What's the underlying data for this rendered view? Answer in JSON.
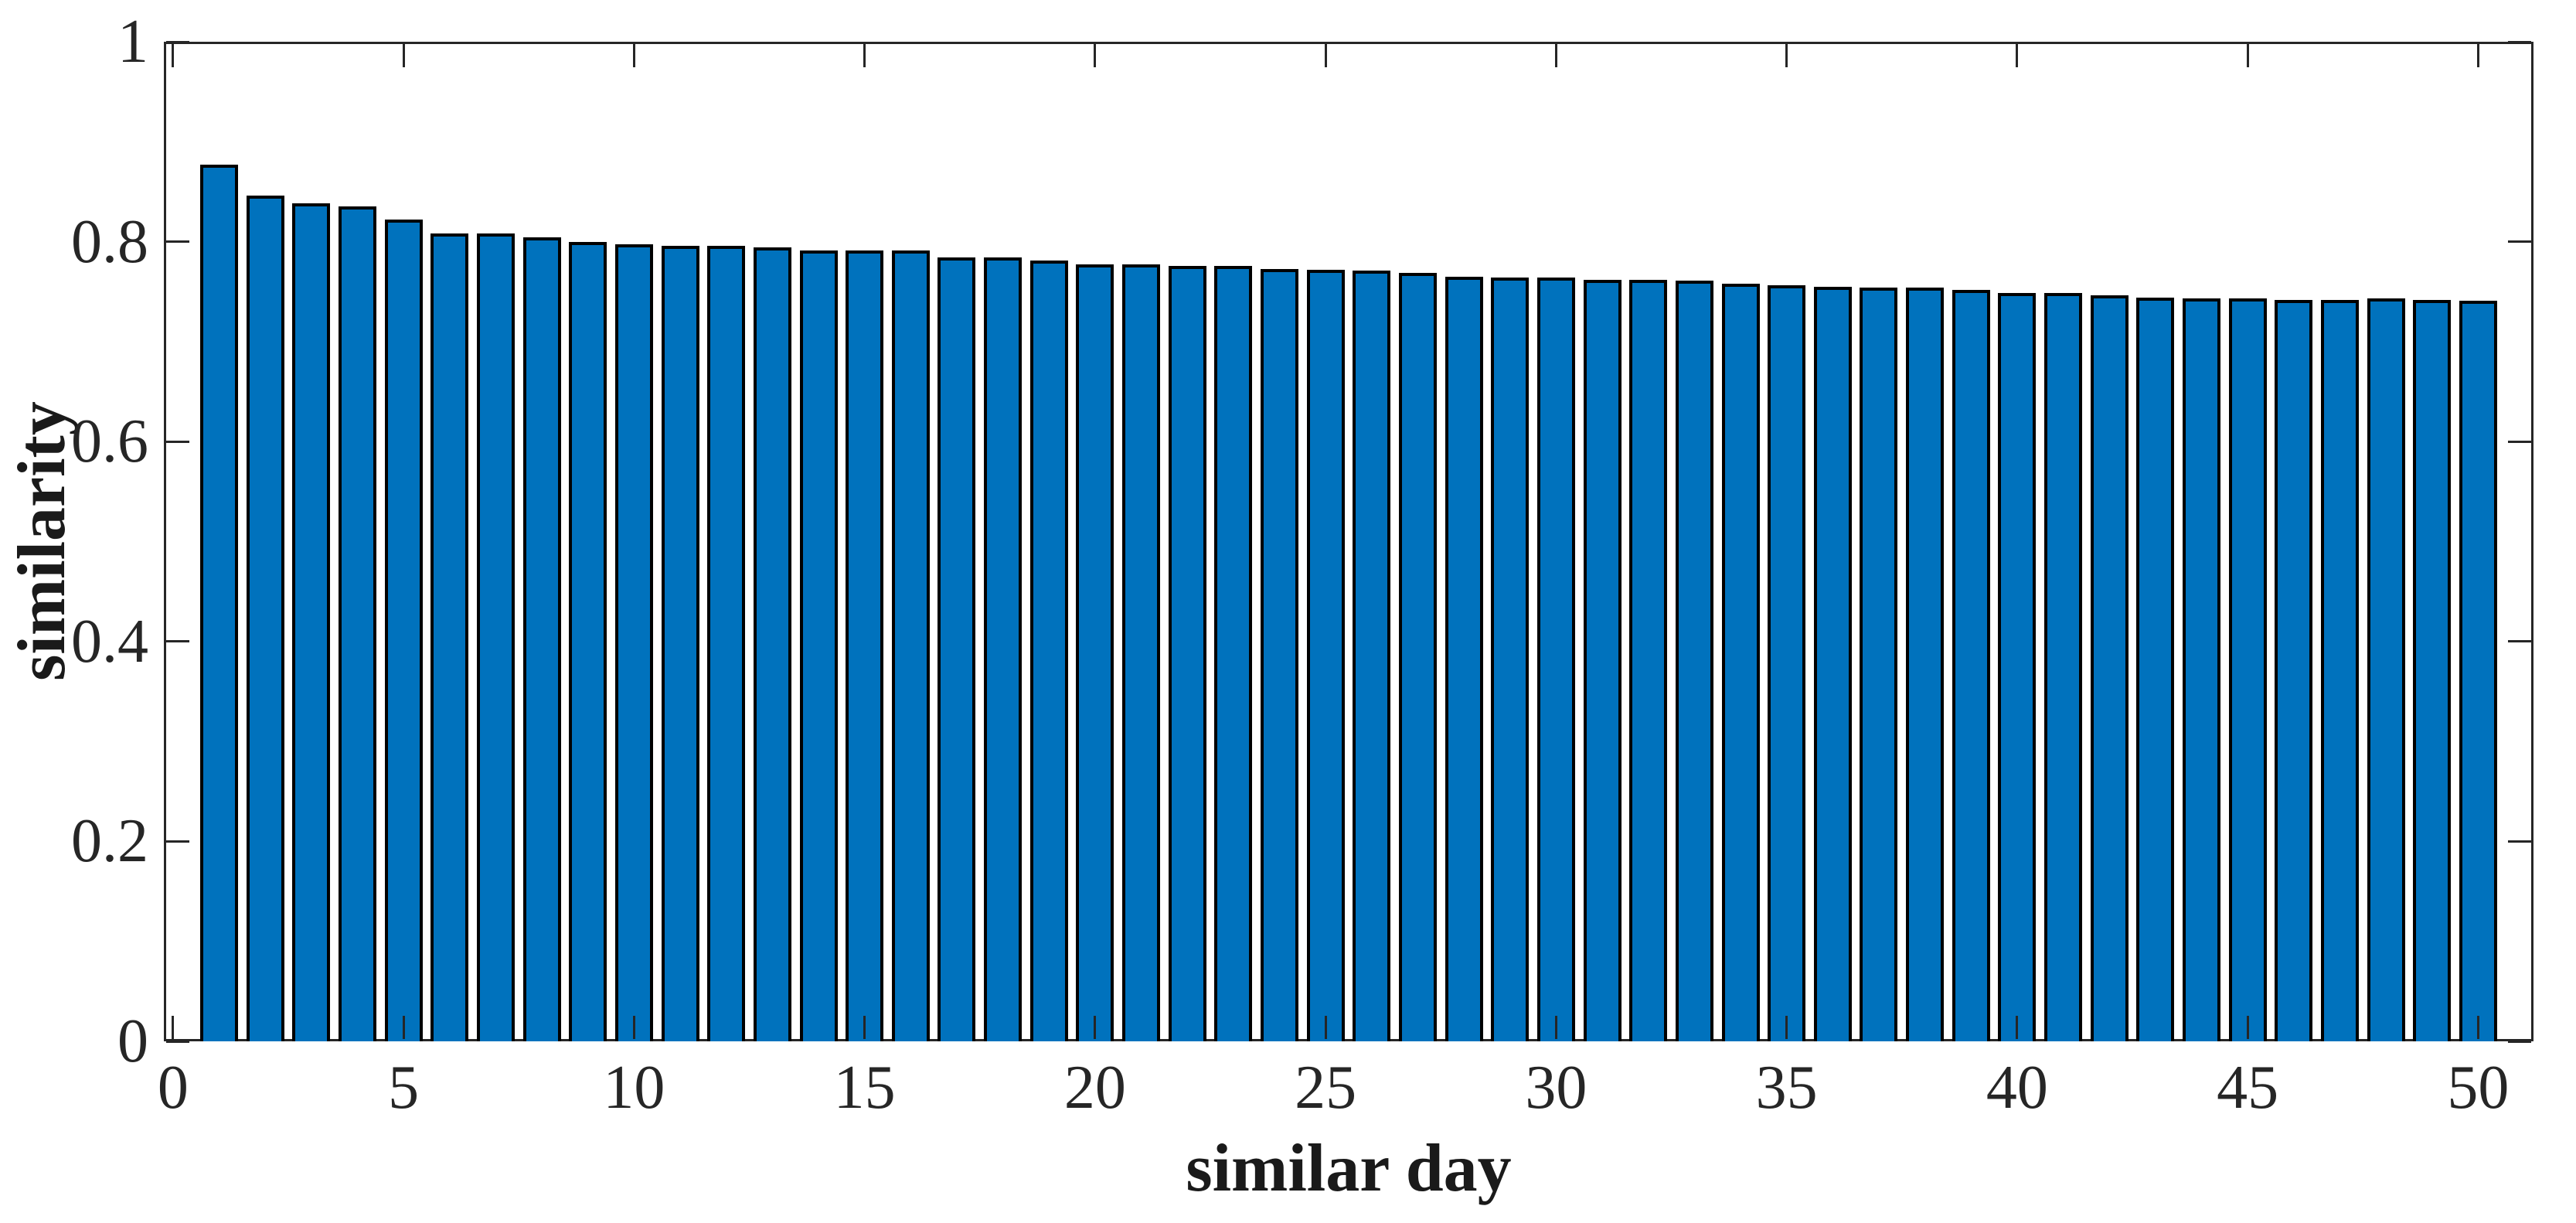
{
  "figure": {
    "background": "#ffffff"
  },
  "chart_data": {
    "type": "bar",
    "title": "",
    "xlabel": "similar day",
    "ylabel": "similarity",
    "categories": [
      1,
      2,
      3,
      4,
      5,
      6,
      7,
      8,
      9,
      10,
      11,
      12,
      13,
      14,
      15,
      16,
      17,
      18,
      19,
      20,
      21,
      22,
      23,
      24,
      25,
      26,
      27,
      28,
      29,
      30,
      31,
      32,
      33,
      34,
      35,
      36,
      37,
      38,
      39,
      40,
      41,
      42,
      43,
      44,
      45,
      46,
      47,
      48,
      49,
      50
    ],
    "values": [
      0.877,
      0.846,
      0.838,
      0.835,
      0.822,
      0.808,
      0.808,
      0.804,
      0.8,
      0.797,
      0.796,
      0.796,
      0.794,
      0.791,
      0.791,
      0.791,
      0.784,
      0.784,
      0.781,
      0.777,
      0.777,
      0.776,
      0.776,
      0.773,
      0.772,
      0.771,
      0.769,
      0.765,
      0.764,
      0.764,
      0.762,
      0.762,
      0.761,
      0.758,
      0.756,
      0.755,
      0.754,
      0.754,
      0.752,
      0.749,
      0.749,
      0.746,
      0.744,
      0.743,
      0.743,
      0.742,
      0.742,
      0.743,
      0.742,
      0.741
    ],
    "xlim": [
      -0.2,
      51.2
    ],
    "ylim": [
      0,
      1
    ],
    "xticks": [
      0,
      5,
      10,
      15,
      20,
      25,
      30,
      35,
      40,
      45,
      50
    ],
    "xticklabels": [
      "0",
      "5",
      "10",
      "15",
      "20",
      "25",
      "30",
      "35",
      "40",
      "45",
      "50"
    ],
    "yticks": [
      0,
      0.2,
      0.4,
      0.6,
      0.8,
      1
    ],
    "yticklabels": [
      "0",
      "0.2",
      "0.4",
      "0.6",
      "0.8",
      "1"
    ],
    "bar_width_data_units": 0.8,
    "grid": false,
    "legend_position": "none",
    "tick_direction": "in",
    "box": true,
    "colors": {
      "bar_fill": "#0072BD",
      "bar_edge": "#000000",
      "axis": "#262626",
      "tick_label": "#262626",
      "axis_label": "#1a1a1a",
      "background": "#ffffff"
    }
  }
}
